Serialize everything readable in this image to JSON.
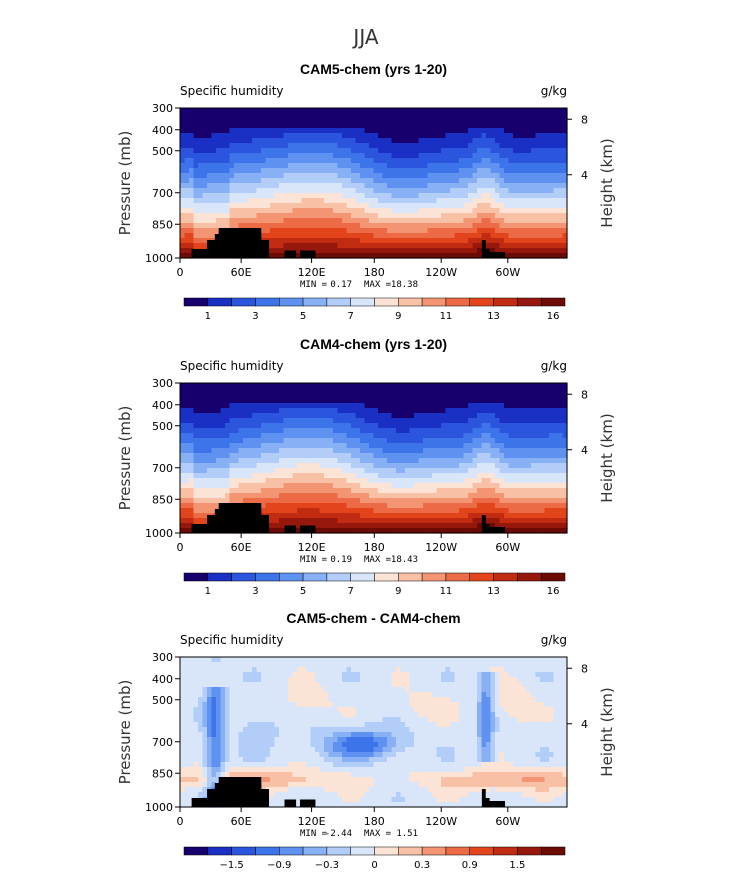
{
  "suptitle": "JJA",
  "chart_data": [
    {
      "type": "heatmap",
      "title": "CAM5-chem (yrs 1-20)",
      "left_label": "Specific humidity",
      "units": "g/kg",
      "ylabel": "Pressure (mb)",
      "ylabel_right": "Height (km)",
      "yticks": [
        "300",
        "400",
        "500",
        "700",
        "850",
        "1000"
      ],
      "yticks_right": [
        "8",
        "4"
      ],
      "xticks": [
        "0",
        "60E",
        "120E",
        "180",
        "120W",
        "60W"
      ],
      "min_label": "MIN =",
      "min_value": "0.17",
      "max_label": "MAX =",
      "max_value": "18.38",
      "colorbar_labels": [
        "1",
        "3",
        "5",
        "7",
        "9",
        "11",
        "13",
        "16"
      ],
      "colors": [
        "#17006e",
        "#1a2fc4",
        "#2a55dc",
        "#3d74ea",
        "#5f92f0",
        "#87b0f5",
        "#b1cdf8",
        "#d9e6fa",
        "#fbe4d6",
        "#f8c0a5",
        "#f39572",
        "#ec6a45",
        "#e2451c",
        "#c02b12",
        "#96180c",
        "#6c0a05"
      ]
    },
    {
      "type": "heatmap",
      "title": "CAM4-chem (yrs 1-20)",
      "left_label": "Specific humidity",
      "units": "g/kg",
      "ylabel": "Pressure (mb)",
      "ylabel_right": "Height (km)",
      "yticks": [
        "300",
        "400",
        "500",
        "700",
        "850",
        "1000"
      ],
      "yticks_right": [
        "8",
        "4"
      ],
      "xticks": [
        "0",
        "60E",
        "120E",
        "180",
        "120W",
        "60W"
      ],
      "min_label": "MIN =",
      "min_value": "0.19",
      "max_label": "MAX =",
      "max_value": "18.43",
      "colorbar_labels": [
        "1",
        "3",
        "5",
        "7",
        "9",
        "11",
        "13",
        "16"
      ],
      "colors": [
        "#17006e",
        "#1a2fc4",
        "#2a55dc",
        "#3d74ea",
        "#5f92f0",
        "#87b0f5",
        "#b1cdf8",
        "#d9e6fa",
        "#fbe4d6",
        "#f8c0a5",
        "#f39572",
        "#ec6a45",
        "#e2451c",
        "#c02b12",
        "#96180c",
        "#6c0a05"
      ]
    },
    {
      "type": "heatmap",
      "title": "CAM5-chem - CAM4-chem",
      "left_label": "Specific humidity",
      "units": "g/kg",
      "ylabel": "Pressure (mb)",
      "ylabel_right": "Height (km)",
      "yticks": [
        "300",
        "400",
        "500",
        "700",
        "850",
        "1000"
      ],
      "yticks_right": [
        "8",
        "4"
      ],
      "xticks": [
        "0",
        "60E",
        "120E",
        "180",
        "120W",
        "60W"
      ],
      "min_label": "MIN =",
      "min_value": "-2.44",
      "max_label": "MAX =",
      "max_value": "1.51",
      "colorbar_labels": [
        "−1.5",
        "−0.9",
        "−0.3",
        "0",
        "0.3",
        "0.9",
        "1.5"
      ],
      "colors": [
        "#17006e",
        "#1a2fc4",
        "#2a55dc",
        "#3d74ea",
        "#5f92f0",
        "#87b0f5",
        "#b1cdf8",
        "#d9e6fa",
        "#fbe4d6",
        "#f8c0a5",
        "#f39572",
        "#ec6a45",
        "#e2451c",
        "#c02b12",
        "#96180c",
        "#6c0a05"
      ]
    }
  ]
}
